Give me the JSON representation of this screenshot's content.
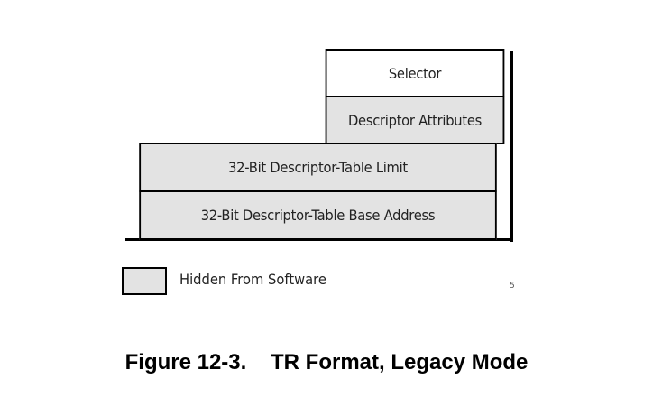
{
  "diagram": {
    "fields": {
      "selector": "Selector",
      "descriptor_attributes": "Descriptor Attributes",
      "table_limit": "32-Bit Descriptor-Table Limit",
      "table_base": "32-Bit Descriptor-Table Base Address"
    },
    "legend": {
      "label": "Hidden From Software"
    },
    "stray_mark": "5",
    "colors": {
      "hidden_fill": "#e3e3e3",
      "visible_fill": "#ffffff",
      "border": "#000000"
    }
  },
  "caption": {
    "figure_number": "Figure 12-3.",
    "title": "TR Format, Legacy Mode"
  }
}
